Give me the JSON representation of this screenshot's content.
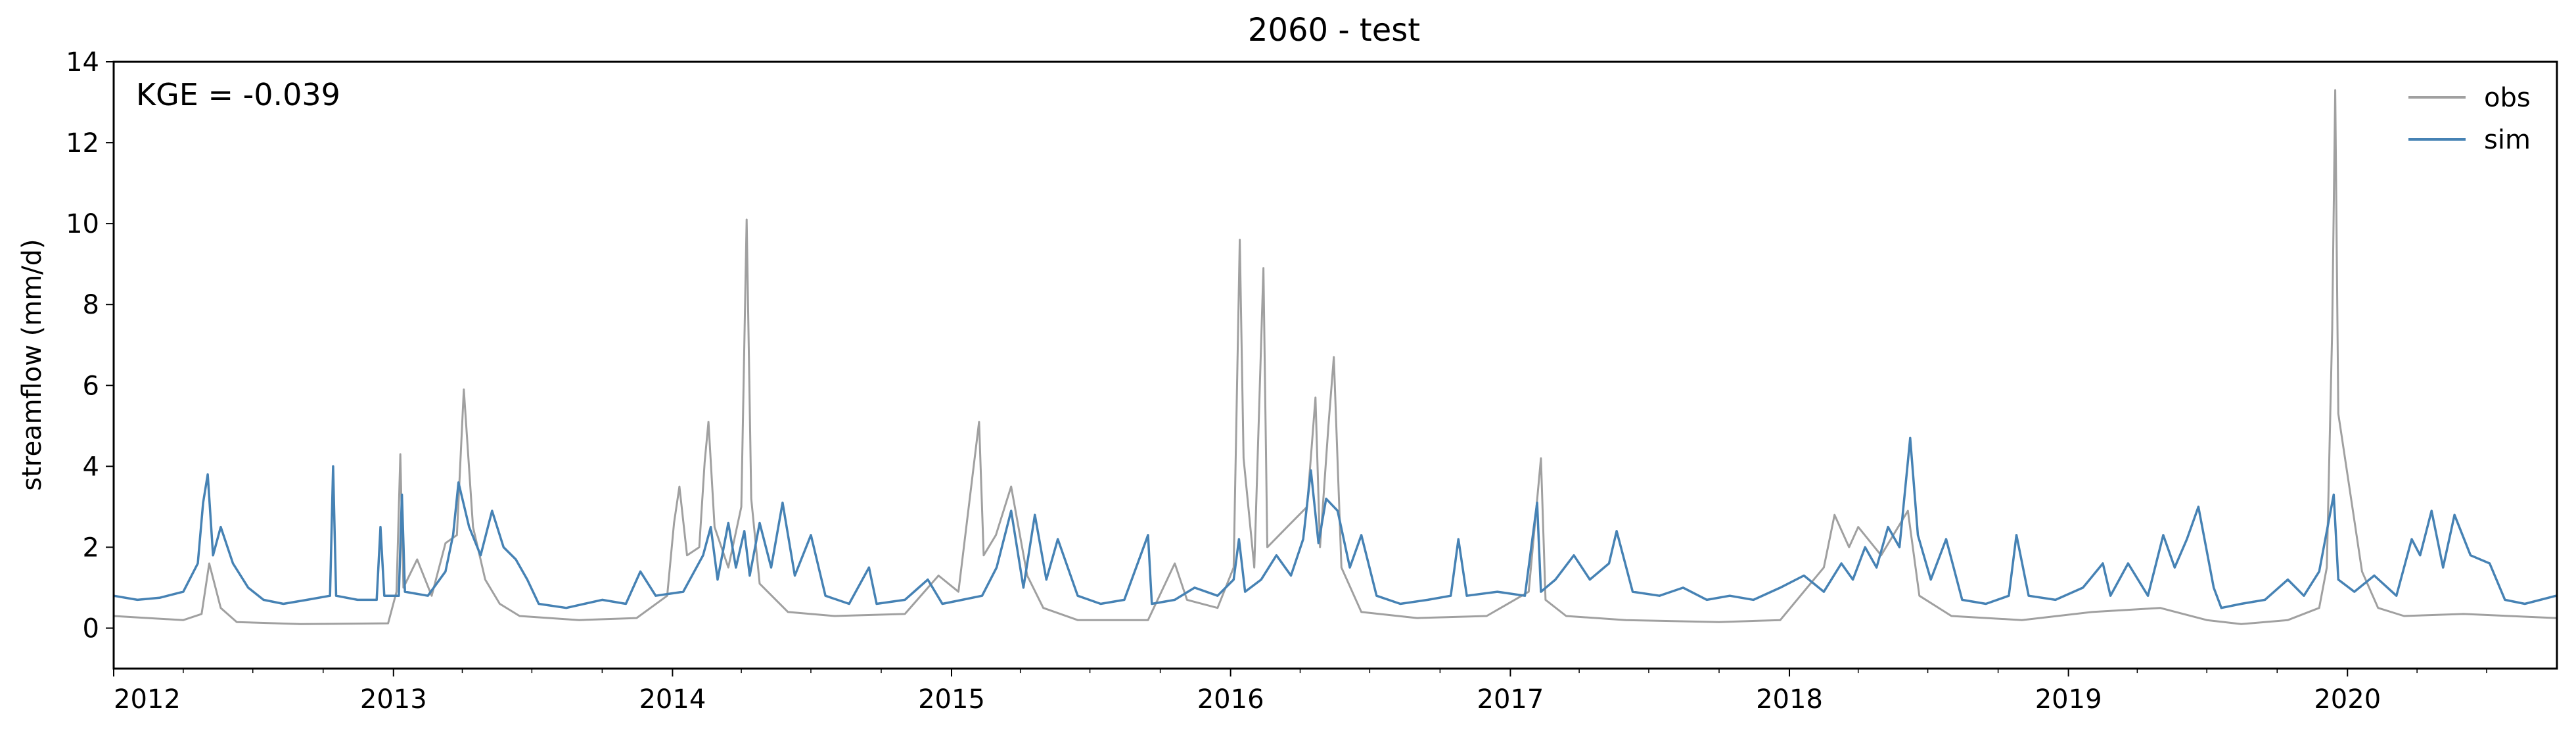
{
  "chart_data": {
    "type": "line",
    "title": "2060 - test",
    "xlabel": "",
    "ylabel": "streamflow (mm/d)",
    "annotation": "KGE = -0.039",
    "xlim": [
      "2012-01-01",
      "2020-10-01"
    ],
    "ylim": [
      -1,
      14
    ],
    "x_ticks": [
      "2012",
      "2013",
      "2014",
      "2015",
      "2016",
      "2017",
      "2018",
      "2019",
      "2020"
    ],
    "y_ticks": [
      0,
      2,
      4,
      6,
      8,
      10,
      12,
      14
    ],
    "grid": false,
    "legend_position": "top-right",
    "colors": {
      "obs": "#a0a0a0",
      "sim": "#4682b4"
    },
    "series": [
      {
        "name": "obs",
        "points": [
          [
            "2012-01-01",
            0.3
          ],
          [
            "2012-02-15",
            0.25
          ],
          [
            "2012-04-01",
            0.2
          ],
          [
            "2012-04-25",
            0.35
          ],
          [
            "2012-05-05",
            1.6
          ],
          [
            "2012-05-20",
            0.5
          ],
          [
            "2012-06-10",
            0.15
          ],
          [
            "2012-09-01",
            0.1
          ],
          [
            "2012-12-25",
            0.12
          ],
          [
            "2013-01-05",
            0.9
          ],
          [
            "2013-01-10",
            4.3
          ],
          [
            "2013-01-14",
            1.0
          ],
          [
            "2013-02-01",
            1.7
          ],
          [
            "2013-02-20",
            0.8
          ],
          [
            "2013-03-10",
            2.1
          ],
          [
            "2013-03-25",
            2.3
          ],
          [
            "2013-04-03",
            5.9
          ],
          [
            "2013-04-15",
            2.5
          ],
          [
            "2013-05-01",
            1.2
          ],
          [
            "2013-05-20",
            0.6
          ],
          [
            "2013-06-15",
            0.3
          ],
          [
            "2013-09-01",
            0.2
          ],
          [
            "2013-11-15",
            0.25
          ],
          [
            "2013-12-25",
            0.8
          ],
          [
            "2014-01-03",
            2.6
          ],
          [
            "2014-01-10",
            3.5
          ],
          [
            "2014-01-20",
            1.8
          ],
          [
            "2014-02-05",
            2.0
          ],
          [
            "2014-02-12",
            4.1
          ],
          [
            "2014-02-17",
            5.1
          ],
          [
            "2014-02-25",
            2.5
          ],
          [
            "2014-03-15",
            1.5
          ],
          [
            "2014-04-01",
            3.0
          ],
          [
            "2014-04-08",
            10.1
          ],
          [
            "2014-04-14",
            3.2
          ],
          [
            "2014-04-25",
            1.1
          ],
          [
            "2014-06-01",
            0.4
          ],
          [
            "2014-08-01",
            0.3
          ],
          [
            "2014-11-01",
            0.35
          ],
          [
            "2014-12-15",
            1.3
          ],
          [
            "2015-01-10",
            0.9
          ],
          [
            "2015-02-06",
            5.1
          ],
          [
            "2015-02-12",
            1.8
          ],
          [
            "2015-02-28",
            2.3
          ],
          [
            "2015-03-20",
            3.5
          ],
          [
            "2015-04-10",
            1.3
          ],
          [
            "2015-05-01",
            0.5
          ],
          [
            "2015-06-15",
            0.2
          ],
          [
            "2015-09-15",
            0.2
          ],
          [
            "2015-10-20",
            1.6
          ],
          [
            "2015-11-05",
            0.7
          ],
          [
            "2015-12-15",
            0.5
          ],
          [
            "2016-01-05",
            1.5
          ],
          [
            "2016-01-13",
            9.6
          ],
          [
            "2016-01-18",
            4.2
          ],
          [
            "2016-02-01",
            1.5
          ],
          [
            "2016-02-13",
            8.9
          ],
          [
            "2016-02-18",
            2.0
          ],
          [
            "2016-03-15",
            2.5
          ],
          [
            "2016-04-10",
            3.0
          ],
          [
            "2016-04-21",
            5.7
          ],
          [
            "2016-04-27",
            2.0
          ],
          [
            "2016-05-08",
            5.0
          ],
          [
            "2016-05-15",
            6.7
          ],
          [
            "2016-05-25",
            1.5
          ],
          [
            "2016-06-20",
            0.4
          ],
          [
            "2016-09-01",
            0.25
          ],
          [
            "2016-12-01",
            0.3
          ],
          [
            "2017-01-25",
            0.9
          ],
          [
            "2017-02-10",
            4.2
          ],
          [
            "2017-02-16",
            0.7
          ],
          [
            "2017-03-15",
            0.3
          ],
          [
            "2017-06-01",
            0.2
          ],
          [
            "2017-10-01",
            0.15
          ],
          [
            "2017-12-20",
            0.2
          ],
          [
            "2018-02-15",
            1.5
          ],
          [
            "2018-03-01",
            2.8
          ],
          [
            "2018-03-20",
            2.0
          ],
          [
            "2018-04-01",
            2.5
          ],
          [
            "2018-05-01",
            1.8
          ],
          [
            "2018-06-05",
            2.9
          ],
          [
            "2018-06-20",
            0.8
          ],
          [
            "2018-08-01",
            0.3
          ],
          [
            "2018-11-01",
            0.2
          ],
          [
            "2019-02-01",
            0.4
          ],
          [
            "2019-05-01",
            0.5
          ],
          [
            "2019-07-01",
            0.2
          ],
          [
            "2019-08-15",
            0.1
          ],
          [
            "2019-10-15",
            0.2
          ],
          [
            "2019-11-25",
            0.5
          ],
          [
            "2019-12-05",
            1.5
          ],
          [
            "2019-12-12",
            7.4
          ],
          [
            "2019-12-16",
            13.3
          ],
          [
            "2019-12-20",
            5.3
          ],
          [
            "2020-01-01",
            3.8
          ],
          [
            "2020-01-20",
            1.4
          ],
          [
            "2020-02-10",
            0.5
          ],
          [
            "2020-03-15",
            0.3
          ],
          [
            "2020-06-01",
            0.35
          ],
          [
            "2020-09-30",
            0.25
          ]
        ]
      },
      {
        "name": "sim",
        "points": [
          [
            "2012-01-01",
            0.8
          ],
          [
            "2012-02-01",
            0.7
          ],
          [
            "2012-03-01",
            0.75
          ],
          [
            "2012-04-01",
            0.9
          ],
          [
            "2012-04-20",
            1.6
          ],
          [
            "2012-04-27",
            3.1
          ],
          [
            "2012-05-03",
            3.8
          ],
          [
            "2012-05-10",
            1.8
          ],
          [
            "2012-05-20",
            2.5
          ],
          [
            "2012-06-05",
            1.6
          ],
          [
            "2012-06-25",
            1.0
          ],
          [
            "2012-07-15",
            0.7
          ],
          [
            "2012-08-10",
            0.6
          ],
          [
            "2012-09-10",
            0.7
          ],
          [
            "2012-10-10",
            0.8
          ],
          [
            "2012-10-14",
            4.0
          ],
          [
            "2012-10-18",
            0.8
          ],
          [
            "2012-11-15",
            0.7
          ],
          [
            "2012-12-10",
            0.7
          ],
          [
            "2012-12-15",
            2.5
          ],
          [
            "2012-12-20",
            0.8
          ],
          [
            "2013-01-08",
            0.8
          ],
          [
            "2013-01-12",
            3.3
          ],
          [
            "2013-01-16",
            0.9
          ],
          [
            "2013-02-15",
            0.8
          ],
          [
            "2013-03-10",
            1.4
          ],
          [
            "2013-03-20",
            2.3
          ],
          [
            "2013-03-27",
            3.6
          ],
          [
            "2013-04-10",
            2.5
          ],
          [
            "2013-04-25",
            1.8
          ],
          [
            "2013-05-10",
            2.9
          ],
          [
            "2013-05-25",
            2.0
          ],
          [
            "2013-06-10",
            1.7
          ],
          [
            "2013-06-25",
            1.2
          ],
          [
            "2013-07-10",
            0.6
          ],
          [
            "2013-08-15",
            0.5
          ],
          [
            "2013-10-01",
            0.7
          ],
          [
            "2013-11-01",
            0.6
          ],
          [
            "2013-11-20",
            1.4
          ],
          [
            "2013-12-10",
            0.8
          ],
          [
            "2014-01-15",
            0.9
          ],
          [
            "2014-02-10",
            1.8
          ],
          [
            "2014-02-20",
            2.5
          ],
          [
            "2014-03-01",
            1.2
          ],
          [
            "2014-03-15",
            2.6
          ],
          [
            "2014-03-25",
            1.5
          ],
          [
            "2014-04-05",
            2.4
          ],
          [
            "2014-04-12",
            1.3
          ],
          [
            "2014-04-25",
            2.6
          ],
          [
            "2014-05-10",
            1.5
          ],
          [
            "2014-05-25",
            3.1
          ],
          [
            "2014-06-10",
            1.3
          ],
          [
            "2014-07-01",
            2.3
          ],
          [
            "2014-07-20",
            0.8
          ],
          [
            "2014-08-20",
            0.6
          ],
          [
            "2014-09-15",
            1.5
          ],
          [
            "2014-09-25",
            0.6
          ],
          [
            "2014-11-01",
            0.7
          ],
          [
            "2014-12-01",
            1.2
          ],
          [
            "2014-12-20",
            0.6
          ],
          [
            "2015-01-15",
            0.7
          ],
          [
            "2015-02-10",
            0.8
          ],
          [
            "2015-03-01",
            1.5
          ],
          [
            "2015-03-20",
            2.9
          ],
          [
            "2015-04-05",
            1.0
          ],
          [
            "2015-04-20",
            2.8
          ],
          [
            "2015-05-05",
            1.2
          ],
          [
            "2015-05-20",
            2.2
          ],
          [
            "2015-06-15",
            0.8
          ],
          [
            "2015-07-15",
            0.6
          ],
          [
            "2015-08-15",
            0.7
          ],
          [
            "2015-09-15",
            2.3
          ],
          [
            "2015-09-20",
            0.6
          ],
          [
            "2015-10-20",
            0.7
          ],
          [
            "2015-11-15",
            1.0
          ],
          [
            "2015-12-15",
            0.8
          ],
          [
            "2016-01-05",
            1.2
          ],
          [
            "2016-01-12",
            2.2
          ],
          [
            "2016-01-20",
            0.9
          ],
          [
            "2016-02-10",
            1.2
          ],
          [
            "2016-03-01",
            1.8
          ],
          [
            "2016-03-20",
            1.3
          ],
          [
            "2016-04-05",
            2.2
          ],
          [
            "2016-04-15",
            3.9
          ],
          [
            "2016-04-25",
            2.1
          ],
          [
            "2016-05-05",
            3.2
          ],
          [
            "2016-05-20",
            2.9
          ],
          [
            "2016-06-05",
            1.5
          ],
          [
            "2016-06-20",
            2.3
          ],
          [
            "2016-07-10",
            0.8
          ],
          [
            "2016-08-10",
            0.6
          ],
          [
            "2016-09-15",
            0.7
          ],
          [
            "2016-10-15",
            0.8
          ],
          [
            "2016-10-25",
            2.2
          ],
          [
            "2016-11-05",
            0.8
          ],
          [
            "2016-12-15",
            0.9
          ],
          [
            "2017-01-20",
            0.8
          ],
          [
            "2017-02-05",
            3.1
          ],
          [
            "2017-02-10",
            0.9
          ],
          [
            "2017-03-01",
            1.2
          ],
          [
            "2017-03-25",
            1.8
          ],
          [
            "2017-04-15",
            1.2
          ],
          [
            "2017-05-10",
            1.6
          ],
          [
            "2017-05-20",
            2.4
          ],
          [
            "2017-06-10",
            0.9
          ],
          [
            "2017-07-15",
            0.8
          ],
          [
            "2017-08-15",
            1.0
          ],
          [
            "2017-09-15",
            0.7
          ],
          [
            "2017-10-15",
            0.8
          ],
          [
            "2017-11-15",
            0.7
          ],
          [
            "2017-12-20",
            1.0
          ],
          [
            "2018-01-20",
            1.3
          ],
          [
            "2018-02-15",
            0.9
          ],
          [
            "2018-03-10",
            1.6
          ],
          [
            "2018-03-25",
            1.2
          ],
          [
            "2018-04-10",
            2.0
          ],
          [
            "2018-04-25",
            1.5
          ],
          [
            "2018-05-10",
            2.5
          ],
          [
            "2018-05-25",
            2.0
          ],
          [
            "2018-06-08",
            4.7
          ],
          [
            "2018-06-18",
            2.3
          ],
          [
            "2018-07-05",
            1.2
          ],
          [
            "2018-07-25",
            2.2
          ],
          [
            "2018-08-15",
            0.7
          ],
          [
            "2018-09-15",
            0.6
          ],
          [
            "2018-10-15",
            0.8
          ],
          [
            "2018-10-25",
            2.3
          ],
          [
            "2018-11-10",
            0.8
          ],
          [
            "2018-12-15",
            0.7
          ],
          [
            "2019-01-20",
            1.0
          ],
          [
            "2019-02-15",
            1.6
          ],
          [
            "2019-02-25",
            0.8
          ],
          [
            "2019-03-20",
            1.6
          ],
          [
            "2019-04-15",
            0.8
          ],
          [
            "2019-05-05",
            2.3
          ],
          [
            "2019-05-20",
            1.5
          ],
          [
            "2019-06-05",
            2.2
          ],
          [
            "2019-06-20",
            3.0
          ],
          [
            "2019-07-10",
            1.0
          ],
          [
            "2019-07-20",
            0.5
          ],
          [
            "2019-08-15",
            0.6
          ],
          [
            "2019-09-15",
            0.7
          ],
          [
            "2019-10-15",
            1.2
          ],
          [
            "2019-11-05",
            0.8
          ],
          [
            "2019-11-25",
            1.4
          ],
          [
            "2019-12-14",
            3.3
          ],
          [
            "2019-12-20",
            1.2
          ],
          [
            "2020-01-10",
            0.9
          ],
          [
            "2020-02-05",
            1.3
          ],
          [
            "2020-03-05",
            0.8
          ],
          [
            "2020-03-25",
            2.2
          ],
          [
            "2020-04-05",
            1.8
          ],
          [
            "2020-04-20",
            2.9
          ],
          [
            "2020-05-05",
            1.5
          ],
          [
            "2020-05-20",
            2.8
          ],
          [
            "2020-06-10",
            1.8
          ],
          [
            "2020-07-05",
            1.6
          ],
          [
            "2020-07-25",
            0.7
          ],
          [
            "2020-08-20",
            0.6
          ],
          [
            "2020-09-30",
            0.8
          ]
        ]
      }
    ]
  }
}
